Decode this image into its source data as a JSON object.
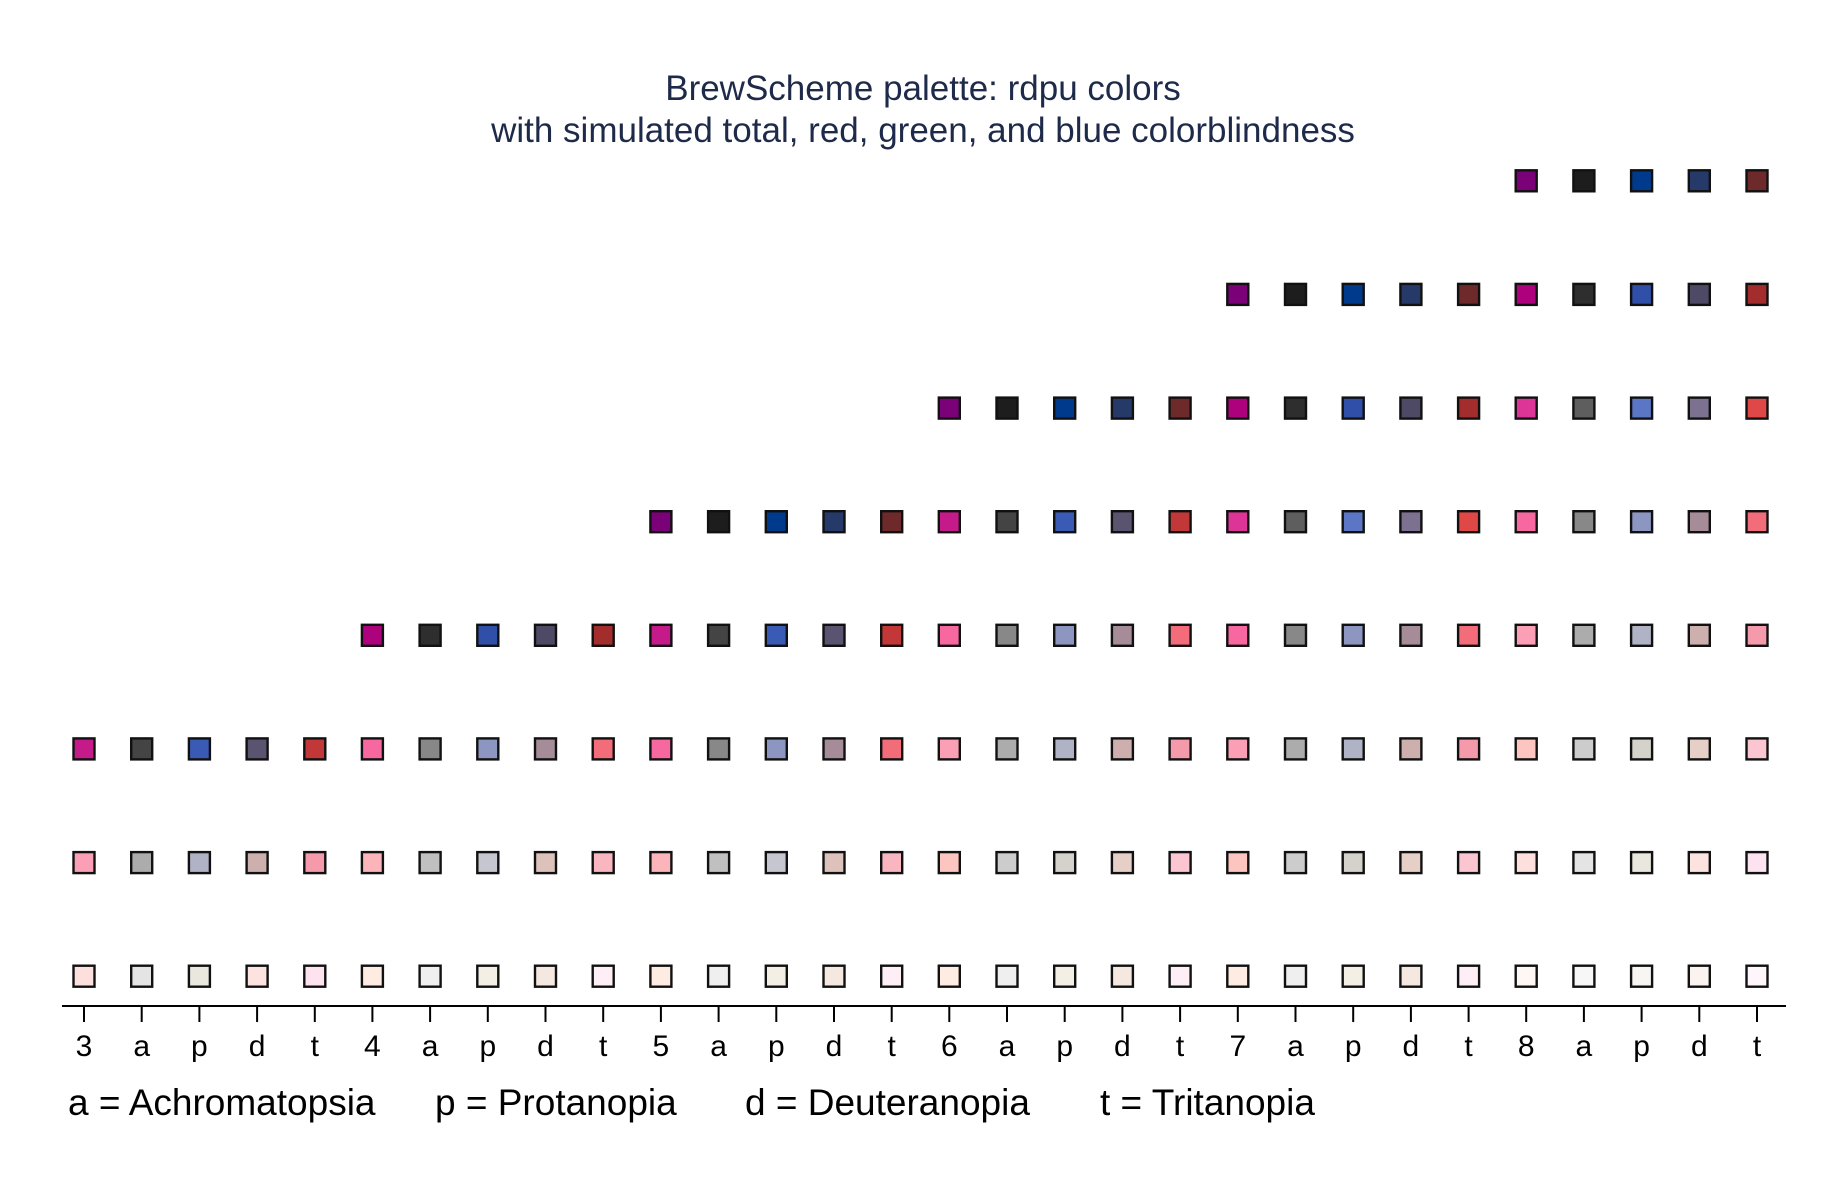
{
  "chart_data": {
    "type": "scatter",
    "title": "BrewScheme palette: rdpu colors",
    "subtitle": "with simulated total, red, green, and blue colorblindness",
    "categories": [
      "3",
      "a",
      "p",
      "d",
      "t",
      "4",
      "a",
      "p",
      "d",
      "t",
      "5",
      "a",
      "p",
      "d",
      "t",
      "6",
      "a",
      "p",
      "d",
      "t",
      "7",
      "a",
      "p",
      "d",
      "t",
      "8",
      "a",
      "p",
      "d",
      "t"
    ],
    "ylim": [
      0.5,
      8.5
    ],
    "grid": false,
    "legend": [
      "a = Achromatopsia",
      "p = Protanopia",
      "d = Deuteranopia",
      "t = Tritanopia"
    ],
    "legend_position": "bottom-left",
    "columns": [
      {
        "label": "3",
        "colors": [
          "#fde0dd",
          "#fa9fb5",
          "#c51b8a"
        ]
      },
      {
        "label": "a",
        "colors": [
          "#e4e4e4",
          "#acacac",
          "#444444"
        ]
      },
      {
        "label": "p",
        "colors": [
          "#e9e7de",
          "#b0b3c5",
          "#3a5bb5"
        ]
      },
      {
        "label": "d",
        "colors": [
          "#fde3e0",
          "#cdb0ae",
          "#5a5470"
        ]
      },
      {
        "label": "t",
        "colors": [
          "#fde2f0",
          "#f49aaa",
          "#c23838"
        ]
      },
      {
        "label": "4",
        "colors": [
          "#feebe2",
          "#fbb4b9",
          "#f768a1",
          "#ae017e"
        ]
      },
      {
        "label": "a",
        "colors": [
          "#efefef",
          "#c0c0c0",
          "#888888",
          "#2e2e2e"
        ]
      },
      {
        "label": "p",
        "colors": [
          "#f3efe4",
          "#c5c6cf",
          "#8d96c0",
          "#2f4fa8"
        ]
      },
      {
        "label": "d",
        "colors": [
          "#f5e8e1",
          "#dcc2bb",
          "#a58c98",
          "#4e4a66"
        ]
      },
      {
        "label": "t",
        "colors": [
          "#feeef6",
          "#f9b5c0",
          "#f26c7a",
          "#a32c2c"
        ]
      },
      {
        "label": "5",
        "colors": [
          "#feebe2",
          "#fbb4b9",
          "#f768a1",
          "#c51b8a",
          "#7a0177"
        ]
      },
      {
        "label": "a",
        "colors": [
          "#efefef",
          "#c0c0c0",
          "#888888",
          "#444444",
          "#1d1d1d"
        ]
      },
      {
        "label": "p",
        "colors": [
          "#f3efe4",
          "#c5c6cf",
          "#8d96c0",
          "#3a5bb5",
          "#003a8c"
        ]
      },
      {
        "label": "d",
        "colors": [
          "#f5e8e1",
          "#dcc2bb",
          "#a58c98",
          "#5a5470",
          "#263a6a"
        ]
      },
      {
        "label": "t",
        "colors": [
          "#feeef6",
          "#f9b5c0",
          "#f26c7a",
          "#c23838",
          "#6e2a2a"
        ]
      },
      {
        "label": "6",
        "colors": [
          "#feebe2",
          "#fcc5c0",
          "#fa9fb5",
          "#f768a1",
          "#c51b8a",
          "#7a0177"
        ]
      },
      {
        "label": "a",
        "colors": [
          "#efefef",
          "#cccccc",
          "#acacac",
          "#888888",
          "#444444",
          "#1d1d1d"
        ]
      },
      {
        "label": "p",
        "colors": [
          "#f3efe4",
          "#d5d2cb",
          "#b0b3c5",
          "#8d96c0",
          "#3a5bb5",
          "#003a8c"
        ]
      },
      {
        "label": "d",
        "colors": [
          "#f5e8e1",
          "#e6cfc6",
          "#cdb0ae",
          "#a58c98",
          "#5a5470",
          "#263a6a"
        ]
      },
      {
        "label": "t",
        "colors": [
          "#feeef6",
          "#fcc5d2",
          "#f49aaa",
          "#f26c7a",
          "#c23838",
          "#6e2a2a"
        ]
      },
      {
        "label": "7",
        "colors": [
          "#feebe2",
          "#fcc5c0",
          "#fa9fb5",
          "#f768a1",
          "#dd3497",
          "#ae017e",
          "#7a0177"
        ]
      },
      {
        "label": "a",
        "colors": [
          "#efefef",
          "#cccccc",
          "#acacac",
          "#888888",
          "#5e5e5e",
          "#2e2e2e",
          "#1d1d1d"
        ]
      },
      {
        "label": "p",
        "colors": [
          "#f3efe4",
          "#d5d2cb",
          "#b0b3c5",
          "#8d96c0",
          "#5a76c4",
          "#2f4fa8",
          "#003a8c"
        ]
      },
      {
        "label": "d",
        "colors": [
          "#f5e8e1",
          "#e6cfc6",
          "#cdb0ae",
          "#a58c98",
          "#7c7190",
          "#4e4a66",
          "#263a6a"
        ]
      },
      {
        "label": "t",
        "colors": [
          "#feeef6",
          "#fcc5d2",
          "#f49aaa",
          "#f26c7a",
          "#e04848",
          "#a32c2c",
          "#6e2a2a"
        ]
      },
      {
        "label": "8",
        "colors": [
          "#fff7f3",
          "#fde0dd",
          "#fcc5c0",
          "#fa9fb5",
          "#f768a1",
          "#dd3497",
          "#ae017e",
          "#7a0177"
        ]
      },
      {
        "label": "a",
        "colors": [
          "#f7f7f7",
          "#e4e4e4",
          "#cccccc",
          "#acacac",
          "#888888",
          "#5e5e5e",
          "#2e2e2e",
          "#1d1d1d"
        ]
      },
      {
        "label": "p",
        "colors": [
          "#f8f6f3",
          "#e9e7de",
          "#d5d2cb",
          "#b0b3c5",
          "#8d96c0",
          "#5a76c4",
          "#2f4fa8",
          "#003a8c"
        ]
      },
      {
        "label": "d",
        "colors": [
          "#faf3f0",
          "#fde3e0",
          "#e6cfc6",
          "#cdb0ae",
          "#a58c98",
          "#7c7190",
          "#4e4a66",
          "#263a6a"
        ]
      },
      {
        "label": "t",
        "colors": [
          "#fff6fb",
          "#fde2f0",
          "#fcc5d2",
          "#f49aaa",
          "#f26c7a",
          "#e04848",
          "#a32c2c",
          "#6e2a2a"
        ]
      }
    ]
  }
}
